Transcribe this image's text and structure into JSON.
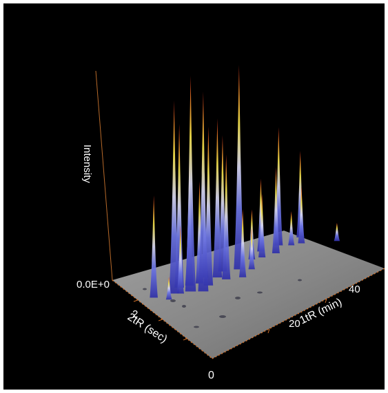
{
  "chart_data": {
    "type": "surface3d",
    "title": "",
    "z_axis": {
      "label": "Intensity",
      "tick_labels": [
        "0.0E+0"
      ]
    },
    "x_axis": {
      "label": "1tR (min)",
      "tick_labels": [
        "20",
        "40"
      ],
      "range": [
        0,
        45
      ]
    },
    "y_axis": {
      "label": "2tR (sec)",
      "tick_labels": [
        "0",
        "2"
      ],
      "range": [
        0,
        4
      ]
    },
    "background_color": "#000000",
    "floor_color": "#8c8c8c",
    "colormap": [
      "#2f2fa8",
      "#6f78e6",
      "#d8d8f2",
      "#f4e24a",
      "#f08a2a",
      "#d8281a"
    ],
    "peaks": [
      {
        "x": 3,
        "y": 2.8,
        "height": 0.45
      },
      {
        "x": 5,
        "y": 2.5,
        "height": 0.1
      },
      {
        "x": 7,
        "y": 2.6,
        "height": 0.85
      },
      {
        "x": 8,
        "y": 2.5,
        "height": 0.3
      },
      {
        "x": 9,
        "y": 2.7,
        "height": 0.72
      },
      {
        "x": 10,
        "y": 2.4,
        "height": 0.95
      },
      {
        "x": 11,
        "y": 2.6,
        "height": 0.55
      },
      {
        "x": 12,
        "y": 2.2,
        "height": 0.88
      },
      {
        "x": 13,
        "y": 2.5,
        "height": 0.45
      },
      {
        "x": 14,
        "y": 2.3,
        "height": 0.7
      },
      {
        "x": 15,
        "y": 2.6,
        "height": 0.35
      },
      {
        "x": 17,
        "y": 2.4,
        "height": 0.7
      },
      {
        "x": 18,
        "y": 2.2,
        "height": 0.55
      },
      {
        "x": 19,
        "y": 2.5,
        "height": 0.6
      },
      {
        "x": 21,
        "y": 2.0,
        "height": 0.3
      },
      {
        "x": 22,
        "y": 2.3,
        "height": 0.9
      },
      {
        "x": 24,
        "y": 2.1,
        "height": 0.18
      },
      {
        "x": 26,
        "y": 2.4,
        "height": 0.22
      },
      {
        "x": 28,
        "y": 2.3,
        "height": 0.28
      },
      {
        "x": 29,
        "y": 2.5,
        "height": 0.32
      },
      {
        "x": 31,
        "y": 2.2,
        "height": 0.38
      },
      {
        "x": 33,
        "y": 2.4,
        "height": 0.52
      },
      {
        "x": 35,
        "y": 2.2,
        "height": 0.15
      },
      {
        "x": 37,
        "y": 2.1,
        "height": 0.25
      },
      {
        "x": 38,
        "y": 2.3,
        "height": 0.38
      },
      {
        "x": 43,
        "y": 1.6,
        "height": 0.08
      }
    ]
  }
}
